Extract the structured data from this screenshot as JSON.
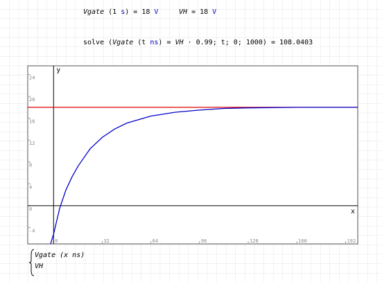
{
  "worksheet": {
    "expressions": [
      [
        {
          "text": "Vgate",
          "italic": true
        },
        {
          "text": " (1 "
        },
        {
          "text": "s",
          "color": "#0000c0"
        },
        {
          "text": ") = 18 "
        },
        {
          "text": "V",
          "color": "#0000c0"
        }
      ],
      [
        {
          "text": "VH",
          "italic": true
        },
        {
          "text": " = 18 "
        },
        {
          "text": "V",
          "color": "#0000c0"
        }
      ],
      [
        {
          "text": "solve ("
        },
        {
          "text": "Vgate",
          "italic": true
        },
        {
          "text": " (t "
        },
        {
          "text": "ns",
          "color": "#0000c0"
        },
        {
          "text": ") = "
        },
        {
          "text": "VH",
          "italic": true
        },
        {
          "text": " · 0.99; t; 0; 1000) = 108.0403"
        }
      ]
    ]
  },
  "chart_data": {
    "type": "line",
    "x_label": "x",
    "y_label": "y",
    "x": [
      -17,
      -2,
      0,
      4,
      8,
      12,
      16,
      24,
      32,
      40,
      48,
      64,
      80,
      96,
      112,
      128,
      160,
      200
    ],
    "series": [
      {
        "name": "Vgate (x ns)",
        "color": "#0000cc",
        "values": [
          null,
          -7,
          -5.2,
          -0.5,
          2.8,
          5.2,
          7.2,
          10.4,
          12.5,
          14,
          15.1,
          16.4,
          17.1,
          17.5,
          17.8,
          17.9,
          18,
          18
        ]
      },
      {
        "name": "VH",
        "color": "#dd0000",
        "values": [
          18,
          18,
          18,
          18,
          18,
          18,
          18,
          18,
          18,
          18,
          18,
          18,
          18,
          18,
          18,
          18,
          18,
          18
        ]
      }
    ],
    "xlim": [
      -17,
      200
    ],
    "ylim": [
      -7,
      25.6
    ],
    "xticks": [
      0,
      32,
      64,
      96,
      128,
      160,
      192
    ],
    "yticks": [
      -4,
      0,
      4,
      8,
      12,
      16,
      20,
      24
    ]
  }
}
